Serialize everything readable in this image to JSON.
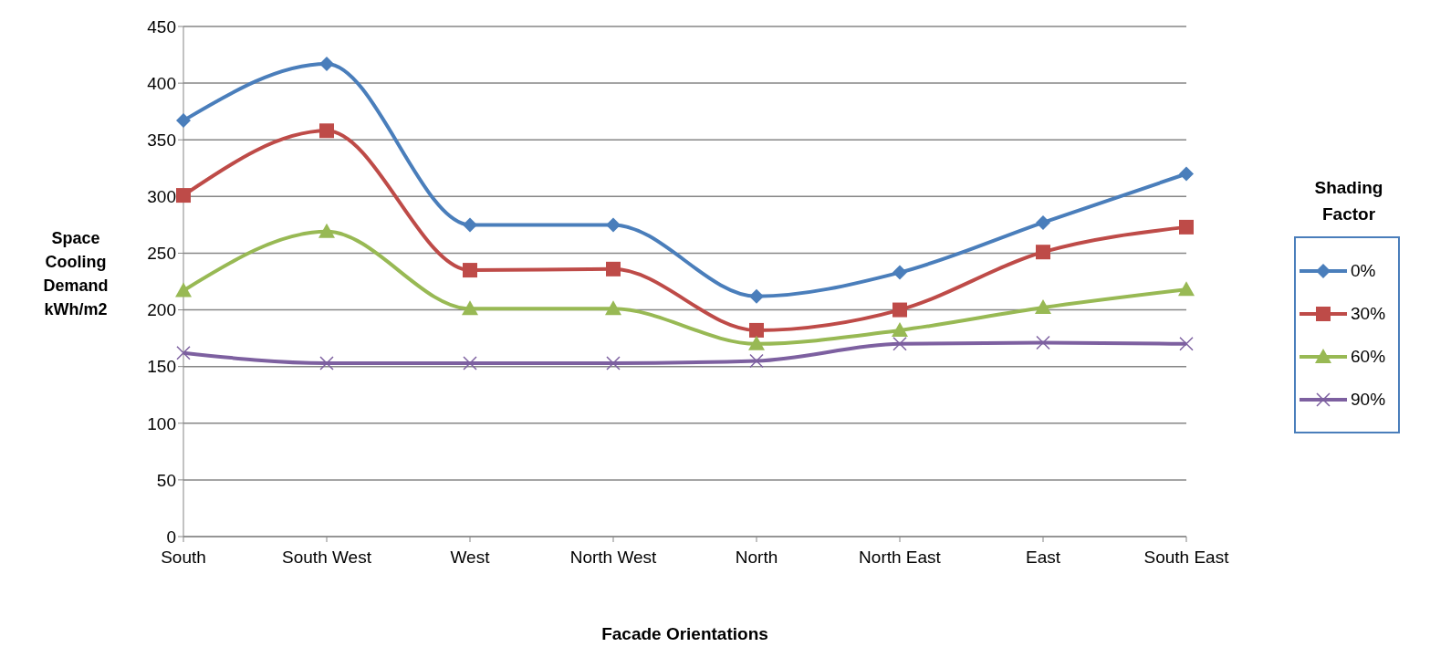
{
  "chart_data": {
    "type": "line",
    "xlabel": "Facade Orientations",
    "ylabel": "Space Cooling Demand kWh/m2",
    "legend_title": "Shading Factor",
    "legend": "right",
    "grid": "y",
    "line_style": "solid",
    "categories": [
      "South",
      "South West",
      "West",
      "North West",
      "North",
      "North East",
      "East",
      "South East"
    ],
    "ylim": [
      0,
      450
    ],
    "yticks": [
      0,
      50,
      100,
      150,
      200,
      250,
      300,
      350,
      400,
      450
    ],
    "series": [
      {
        "name": "0%",
        "color": "#4a7ebb",
        "marker": "diamond",
        "values": [
          367,
          417,
          275,
          275,
          212,
          233,
          277,
          320
        ]
      },
      {
        "name": "30%",
        "color": "#be4b48",
        "marker": "square",
        "values": [
          301,
          358,
          235,
          236,
          182,
          200,
          251,
          273
        ]
      },
      {
        "name": "60%",
        "color": "#98b954",
        "marker": "triangle",
        "values": [
          217,
          269,
          201,
          201,
          170,
          182,
          202,
          218
        ]
      },
      {
        "name": "90%",
        "color": "#7d60a0",
        "marker": "cross",
        "values": [
          162,
          153,
          153,
          153,
          155,
          170,
          171,
          170
        ]
      }
    ]
  }
}
